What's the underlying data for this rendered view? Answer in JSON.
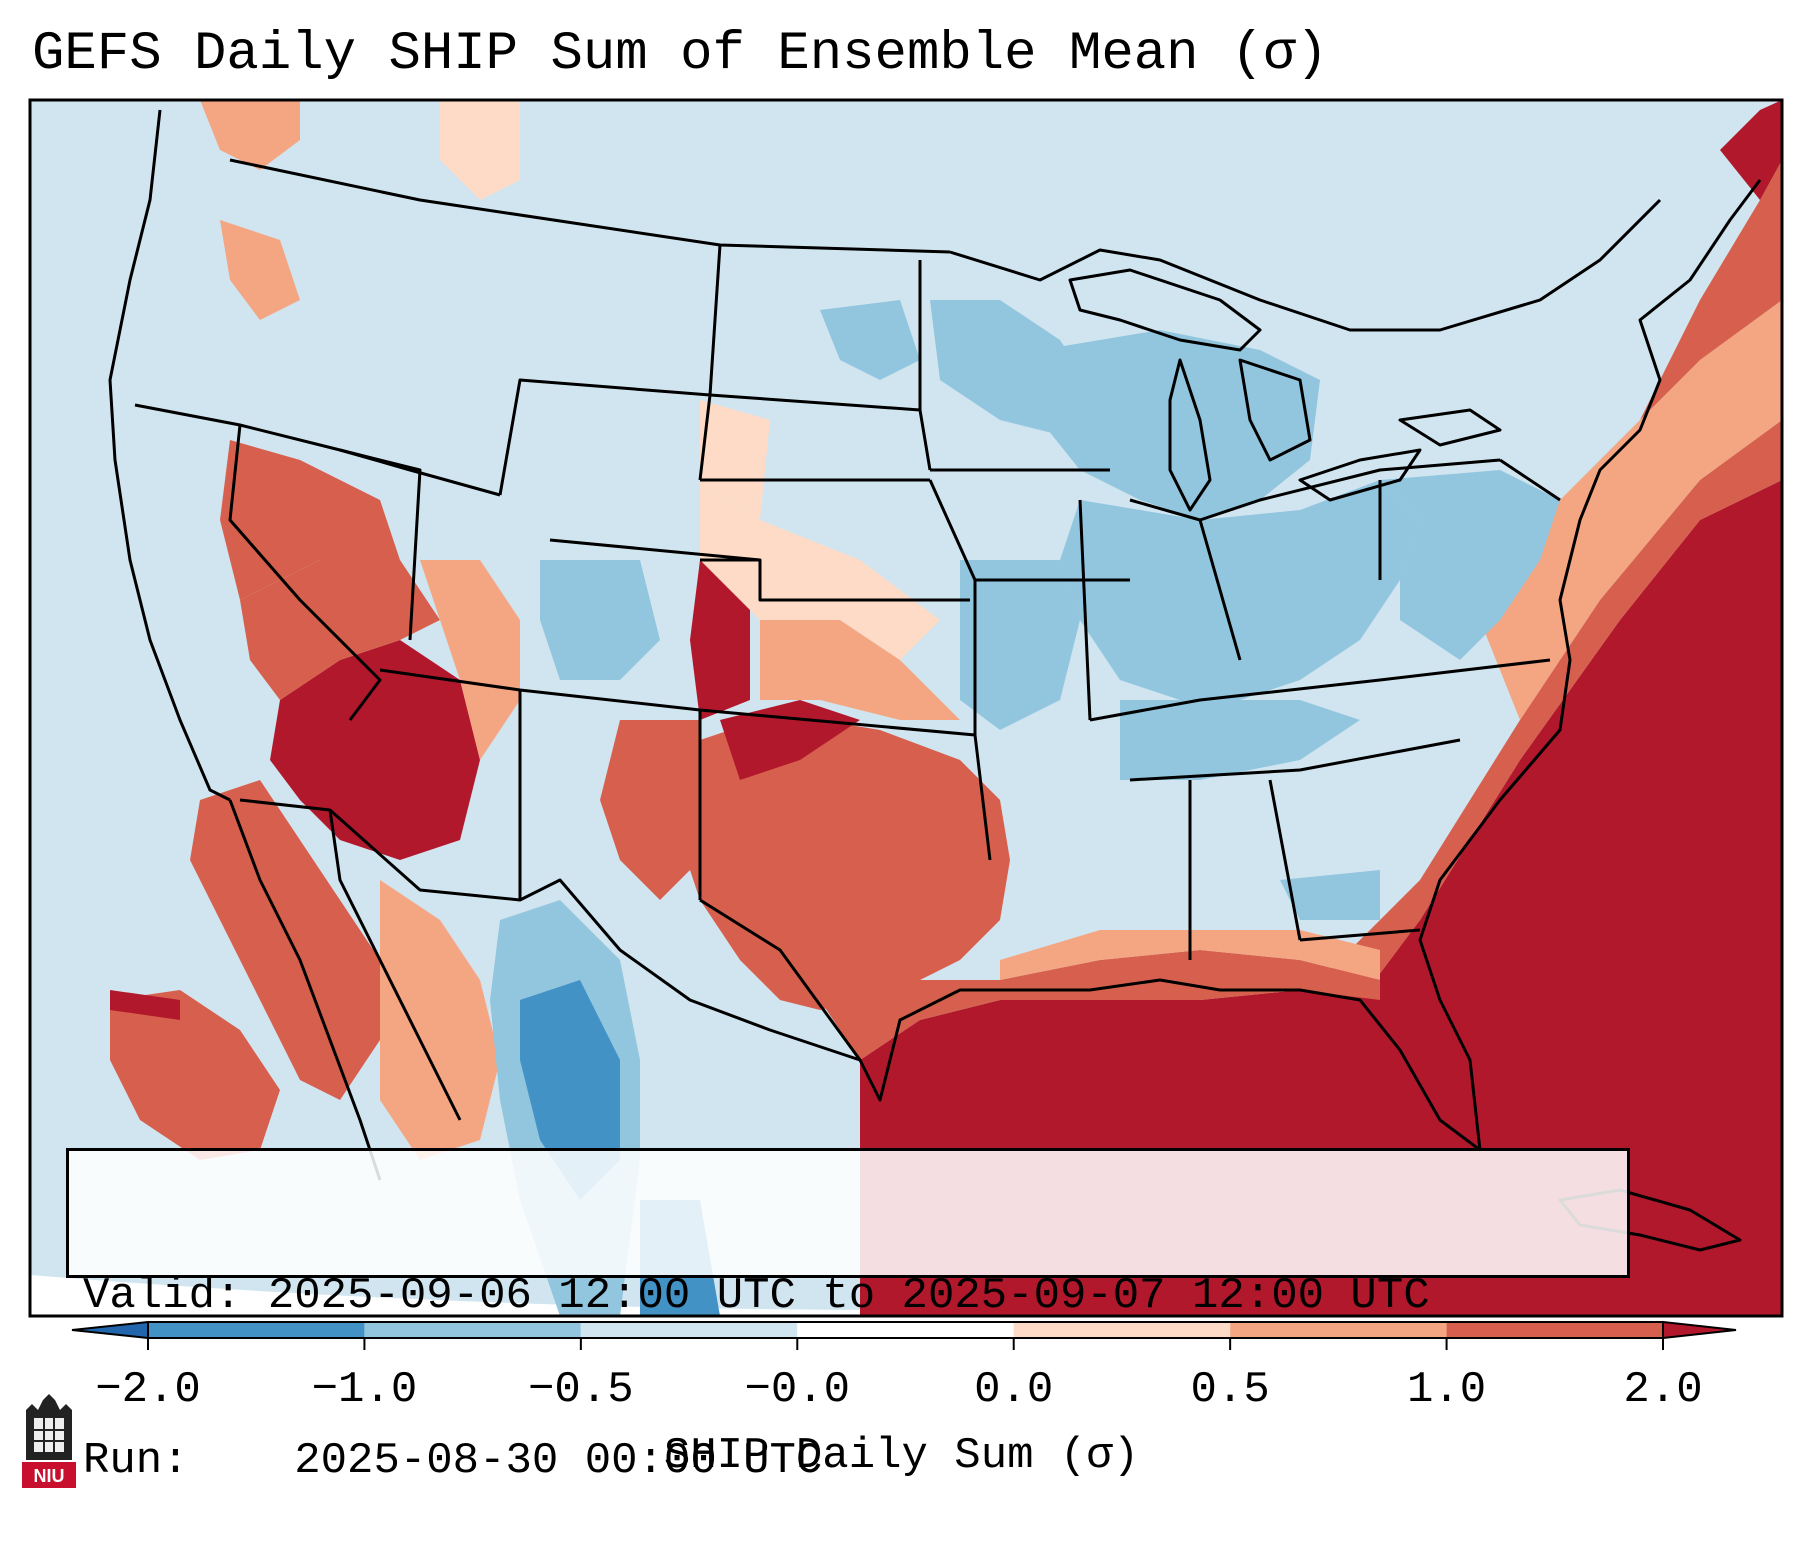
{
  "title": "GEFS Daily SHIP Sum of Ensemble Mean (σ)",
  "info": {
    "valid_label": "Valid:",
    "valid_value": "2025-09-06 12:00 UTC to 2025-09-07 12:00 UTC",
    "run_label": "Run:",
    "run_value": "2025-08-30 00:00 UTC"
  },
  "colorbar": {
    "label": "SHIP Daily Sum (σ)",
    "ticks": [
      "−2.0",
      "−1.0",
      "−0.5",
      "−0.0",
      "0.0",
      "0.5",
      "1.0",
      "2.0"
    ],
    "bins": [
      {
        "range": "-2.0 to -1.0",
        "color": "#4292c6"
      },
      {
        "range": "-1.0 to -0.5",
        "color": "#92c5de"
      },
      {
        "range": "-0.5 to -0.0",
        "color": "#d1e5f0"
      },
      {
        "range": "-0.0 to 0.0",
        "color": "#ffffff"
      },
      {
        "range": "0.0 to 0.5",
        "color": "#fddbc7"
      },
      {
        "range": "0.5 to 1.0",
        "color": "#f4a582"
      },
      {
        "range": "1.0 to 2.0",
        "color": "#d6604d"
      }
    ],
    "under_color": "#2166ac",
    "over_color": "#b2182b"
  },
  "logo_text": "NIU",
  "map": {
    "projection": "Lambert conformal, continental United States",
    "ocean_color": "#d1e5f0",
    "boundaries": "state and national borders, coastlines"
  }
}
